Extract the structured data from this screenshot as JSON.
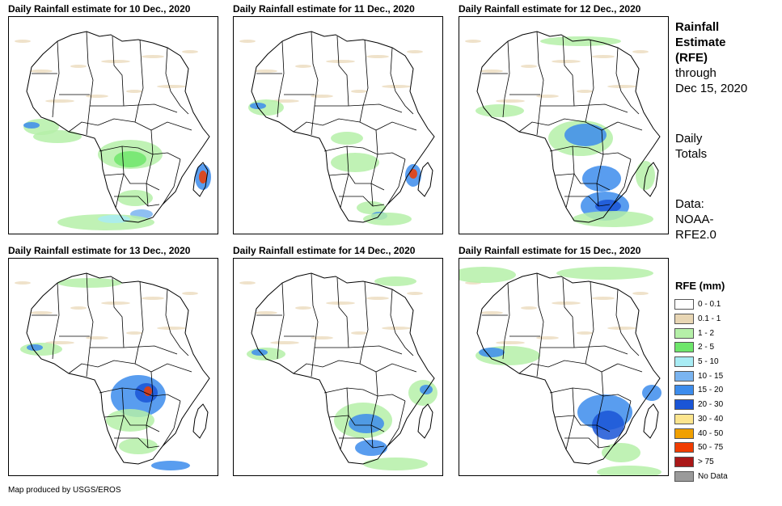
{
  "panels": [
    {
      "title": "Daily Rainfall estimate for 10 Dec., 2020",
      "variant": "d10"
    },
    {
      "title": "Daily Rainfall estimate for 11 Dec., 2020",
      "variant": "d11"
    },
    {
      "title": "Daily Rainfall estimate for 12 Dec., 2020",
      "variant": "d12"
    },
    {
      "title": "Daily Rainfall estimate for 13 Dec., 2020",
      "variant": "d13"
    },
    {
      "title": "Daily Rainfall estimate for 14 Dec., 2020",
      "variant": "d14"
    },
    {
      "title": "Daily Rainfall estimate for 15 Dec., 2020",
      "variant": "d15"
    }
  ],
  "info": {
    "title_line1": "Rainfall",
    "title_line2": "Estimate",
    "title_line3": "(RFE)",
    "through_line1": "through",
    "through_line2": "Dec 15, 2020",
    "totals_line1": "Daily",
    "totals_line2": "Totals",
    "data_line1": "Data:",
    "data_line2": "NOAA-",
    "data_line3": "RFE2.0"
  },
  "legend": {
    "title": "RFE (mm)",
    "items": [
      {
        "label": "0 - 0.1",
        "color": "#ffffff"
      },
      {
        "label": "0.1 - 1",
        "color": "#e8d6b4"
      },
      {
        "label": "1 - 2",
        "color": "#b5f0a8"
      },
      {
        "label": "2 - 5",
        "color": "#6ee66b"
      },
      {
        "label": "5 - 10",
        "color": "#a8ecf4"
      },
      {
        "label": "10 - 15",
        "color": "#7ab4f0"
      },
      {
        "label": "15 - 20",
        "color": "#3c8cec"
      },
      {
        "label": "20 - 30",
        "color": "#1a55d6"
      },
      {
        "label": "30 - 40",
        "color": "#fce58e"
      },
      {
        "label": "40 - 50",
        "color": "#f0a000"
      },
      {
        "label": "50 - 75",
        "color": "#f03c00"
      },
      {
        "label": "> 75",
        "color": "#aa1818"
      },
      {
        "label": "No Data",
        "color": "#9a9a9a"
      }
    ]
  },
  "footer": "Map produced by USGS/EROS"
}
